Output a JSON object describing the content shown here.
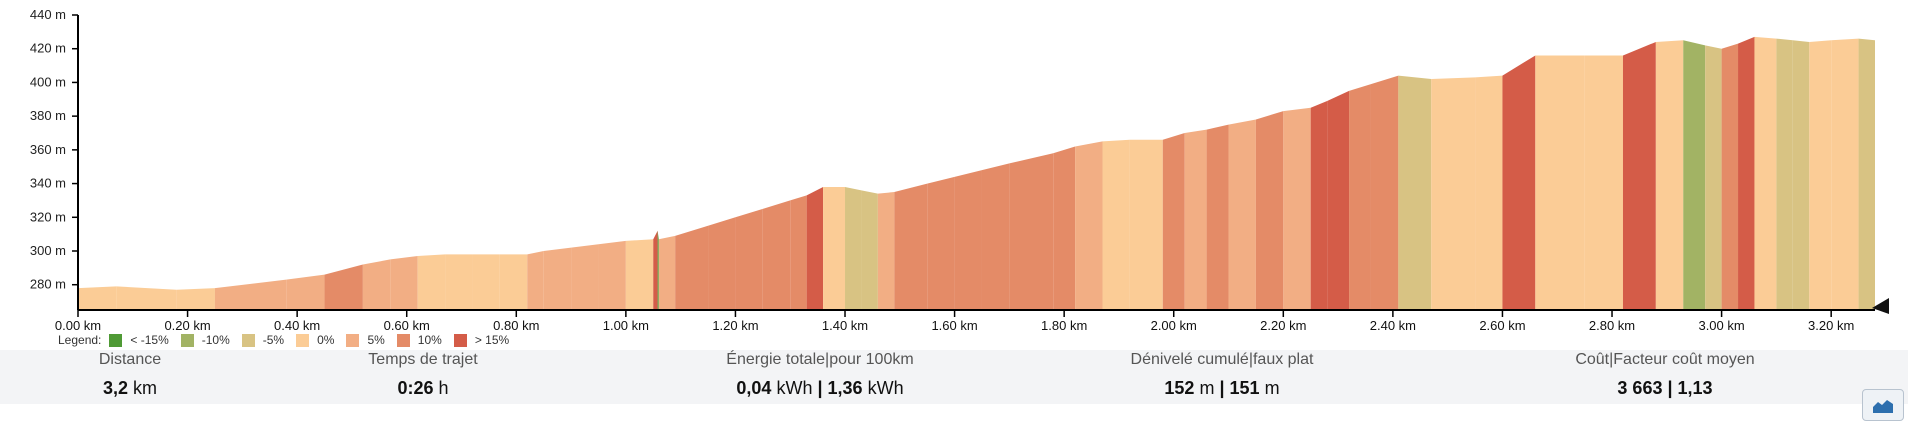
{
  "chart_data": {
    "type": "area",
    "xlabel": "",
    "ylabel": "",
    "xlim": [
      0,
      3.28
    ],
    "ylim": [
      265,
      440
    ],
    "x_ticks": [
      0,
      0.2,
      0.4,
      0.6,
      0.8,
      1.0,
      1.2,
      1.4,
      1.6,
      1.8,
      2.0,
      2.2,
      2.4,
      2.6,
      2.8,
      3.0,
      3.2
    ],
    "x_tick_labels": [
      "0.00 km",
      "0.20 km",
      "0.40 km",
      "0.60 km",
      "0.80 km",
      "1.00 km",
      "1.20 km",
      "1.40 km",
      "1.60 km",
      "1.80 km",
      "2.00 km",
      "2.20 km",
      "2.40 km",
      "2.60 km",
      "2.80 km",
      "3.00 km",
      "3.20 km"
    ],
    "y_ticks": [
      280,
      300,
      320,
      340,
      360,
      380,
      400,
      420,
      440
    ],
    "y_tick_labels": [
      "280 m",
      "300 m",
      "320 m",
      "340 m",
      "360 m",
      "380 m",
      "400 m",
      "420 m",
      "440 m"
    ],
    "elevation_profile": {
      "x": [
        0,
        0.07,
        0.18,
        0.25,
        0.38,
        0.45,
        0.52,
        0.57,
        0.62,
        0.67,
        0.72,
        0.77,
        0.82,
        0.85,
        0.9,
        0.95,
        1.0,
        1.05,
        1.058,
        1.06,
        1.09,
        1.15,
        1.2,
        1.25,
        1.3,
        1.33,
        1.36,
        1.4,
        1.43,
        1.46,
        1.49,
        1.55,
        1.6,
        1.65,
        1.7,
        1.78,
        1.82,
        1.87,
        1.92,
        1.98,
        2.02,
        2.06,
        2.1,
        2.15,
        2.2,
        2.25,
        2.28,
        2.32,
        2.36,
        2.41,
        2.47,
        2.55,
        2.6,
        2.66,
        2.75,
        2.82,
        2.88,
        2.93,
        2.97,
        3.0,
        3.03,
        3.06,
        3.1,
        3.13,
        3.16,
        3.2,
        3.25,
        3.28
      ],
      "y": [
        278,
        279,
        277,
        278,
        283,
        286,
        292,
        295,
        297,
        298,
        298,
        298,
        298,
        300,
        302,
        304,
        306,
        307,
        312,
        307,
        309,
        315,
        320,
        325,
        330,
        333,
        338,
        338,
        336,
        334,
        335,
        340,
        344,
        348,
        352,
        358,
        362,
        365,
        366,
        366,
        370,
        372,
        375,
        378,
        383,
        385,
        389,
        395,
        399,
        404,
        402,
        403,
        404,
        416,
        416,
        416,
        424,
        425,
        422,
        420,
        423,
        427,
        426,
        425,
        424,
        425,
        426,
        425
      ]
    },
    "grade_bins": {
      "label": "Legend:",
      "entries": [
        "< -15%",
        "-10%",
        "-5%",
        "0%",
        "5%",
        "10%",
        "> 15%"
      ],
      "colors": [
        "#4f9a35",
        "#a2b364",
        "#d8c383",
        "#fbcc96",
        "#f2ae84",
        "#e48b67",
        "#d45c48"
      ]
    },
    "grid": false,
    "legend_position": "bottom-left"
  },
  "stats": [
    {
      "label": "Distance",
      "value": "3,2",
      "unit": "km"
    },
    {
      "label": "Temps de trajet",
      "value": "0:26",
      "unit": "h"
    },
    {
      "label": "Énergie totale|pour 100km",
      "value": "0,04",
      "unit": "kWh",
      "value2": "1,36",
      "unit2": "kWh"
    },
    {
      "label": "Dénivelé cumulé|faux plat",
      "value": "152",
      "unit": "m",
      "value2": "151",
      "unit2": "m"
    },
    {
      "label": "Coût|Facteur coût moyen",
      "value": "3 663",
      "unit": "",
      "value2": "1,13",
      "unit2": ""
    }
  ],
  "colors": {
    "axis": "#000000",
    "stats_bg": "#f3f4f6",
    "chart_button_icon": "#2d6fae"
  },
  "icons": {
    "chart_button": "area-chart-icon"
  }
}
